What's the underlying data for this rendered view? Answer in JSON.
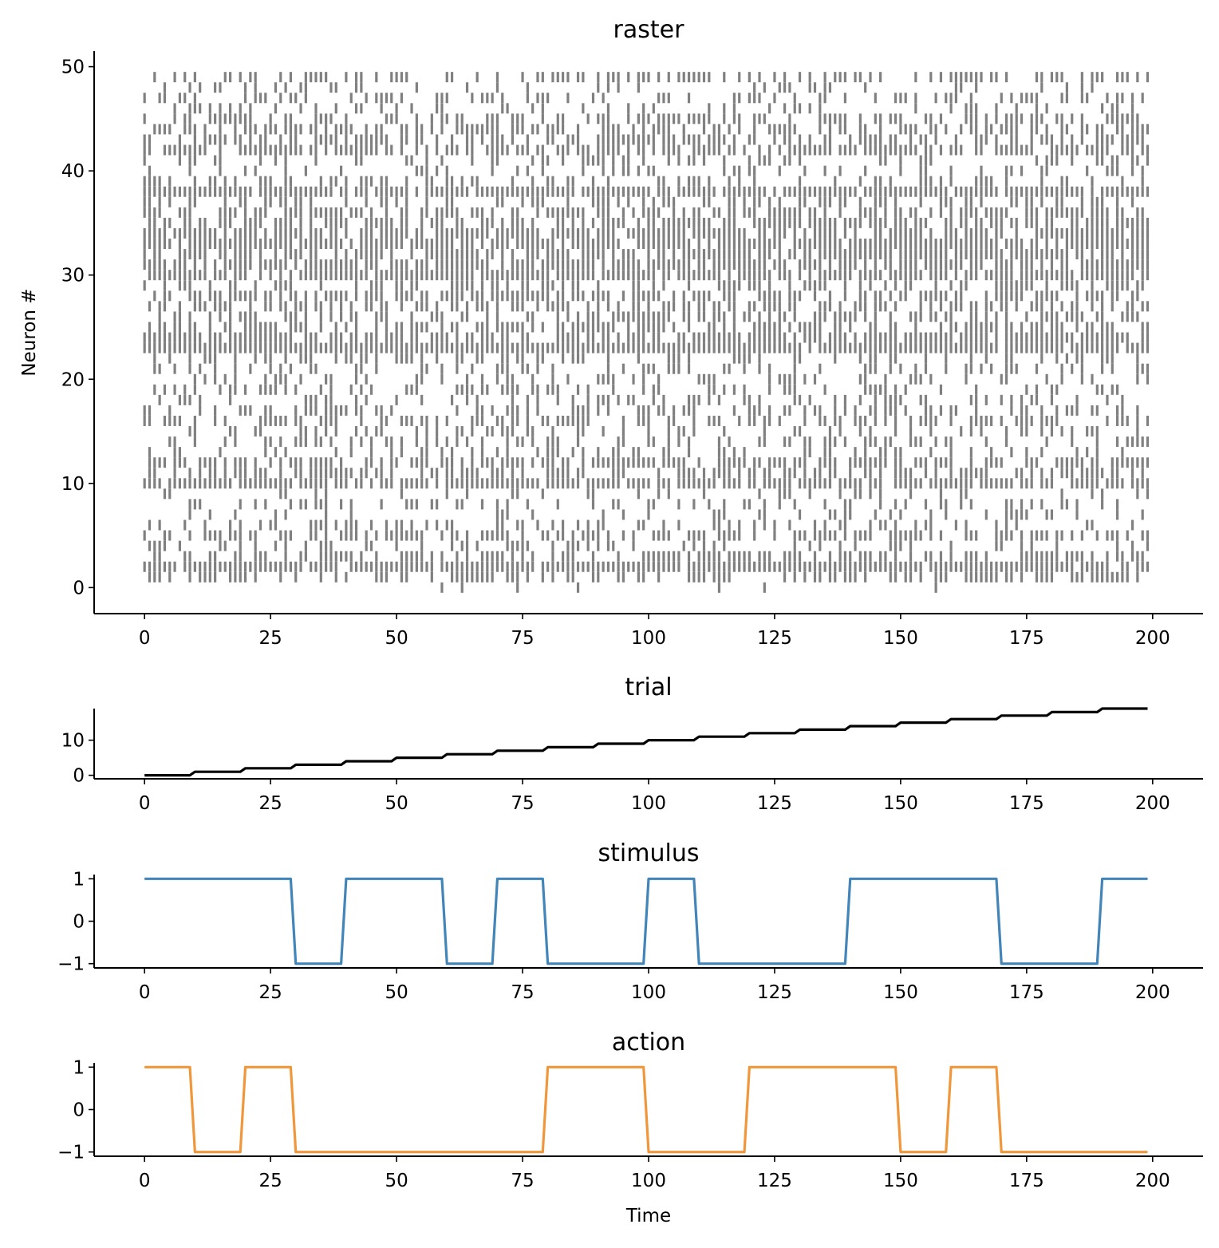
{
  "chart_data": [
    {
      "type": "raster",
      "title": "raster",
      "xlabel": "",
      "ylabel": "Neuron #",
      "xlim": [
        -10,
        210
      ],
      "ylim": [
        -2.5,
        51.5
      ],
      "xticks": [
        0,
        25,
        50,
        75,
        100,
        125,
        150,
        175,
        200
      ],
      "yticks": [
        0,
        10,
        20,
        30,
        40,
        50
      ],
      "n_neurons": 50,
      "time_steps": 200,
      "spike_color": "#808080",
      "spike_rate_by_neuron": [
        0.03,
        0.5,
        0.95,
        0.55,
        0.3,
        0.55,
        0.35,
        0.2,
        0.3,
        0.2,
        0.85,
        0.6,
        0.75,
        0.35,
        0.4,
        0.25,
        0.5,
        0.45,
        0.35,
        0.3,
        0.25,
        0.3,
        0.4,
        0.97,
        0.75,
        0.6,
        0.55,
        0.5,
        0.65,
        0.45,
        0.88,
        0.8,
        0.7,
        0.85,
        0.75,
        0.6,
        0.65,
        0.5,
        0.92,
        0.35,
        0.3,
        0.3,
        0.7,
        0.55,
        0.6,
        0.5,
        0.3,
        0.35,
        0.2,
        0.45
      ]
    },
    {
      "type": "line",
      "title": "trial",
      "xlabel": "",
      "ylabel": "",
      "xlim": [
        -10,
        210
      ],
      "ylim": [
        -1,
        19
      ],
      "xticks": [
        0,
        25,
        50,
        75,
        100,
        125,
        150,
        175,
        200
      ],
      "yticks": [
        0,
        10
      ],
      "color": "#000000",
      "x": [
        0,
        9,
        10,
        19,
        20,
        29,
        30,
        39,
        40,
        49,
        50,
        59,
        60,
        69,
        70,
        79,
        80,
        89,
        90,
        99,
        100,
        109,
        110,
        119,
        120,
        129,
        130,
        139,
        140,
        149,
        150,
        159,
        160,
        169,
        170,
        179,
        180,
        189,
        190,
        199
      ],
      "y": [
        0,
        0,
        1,
        1,
        2,
        2,
        3,
        3,
        4,
        4,
        5,
        5,
        6,
        6,
        7,
        7,
        8,
        8,
        9,
        9,
        10,
        10,
        11,
        11,
        12,
        12,
        13,
        13,
        14,
        14,
        15,
        15,
        16,
        16,
        17,
        17,
        18,
        18,
        19,
        19
      ]
    },
    {
      "type": "line",
      "title": "stimulus",
      "xlabel": "",
      "ylabel": "",
      "xlim": [
        -10,
        210
      ],
      "ylim": [
        -1.1,
        1.1
      ],
      "xticks": [
        0,
        25,
        50,
        75,
        100,
        125,
        150,
        175,
        200
      ],
      "yticks": [
        1,
        0,
        -1
      ],
      "ytick_labels": [
        "1",
        "0",
        "−1"
      ],
      "color": "#4285b8",
      "x": [
        0,
        29,
        30,
        39,
        40,
        59,
        60,
        69,
        70,
        79,
        80,
        99,
        100,
        109,
        110,
        139,
        140,
        169,
        170,
        189,
        190,
        199
      ],
      "y": [
        1,
        1,
        -1,
        -1,
        1,
        1,
        -1,
        -1,
        1,
        1,
        -1,
        -1,
        1,
        1,
        -1,
        -1,
        1,
        1,
        -1,
        -1,
        1,
        1
      ]
    },
    {
      "type": "line",
      "title": "action",
      "xlabel": "Time",
      "ylabel": "",
      "xlim": [
        -10,
        210
      ],
      "ylim": [
        -1.1,
        1.1
      ],
      "xticks": [
        0,
        25,
        50,
        75,
        100,
        125,
        150,
        175,
        200
      ],
      "yticks": [
        1,
        0,
        -1
      ],
      "ytick_labels": [
        "1",
        "0",
        "−1"
      ],
      "color": "#f0973c",
      "x": [
        0,
        9,
        10,
        19,
        20,
        29,
        30,
        79,
        80,
        99,
        100,
        119,
        120,
        149,
        150,
        159,
        160,
        169,
        170,
        199
      ],
      "y": [
        1,
        1,
        -1,
        -1,
        1,
        1,
        -1,
        -1,
        1,
        1,
        -1,
        -1,
        1,
        1,
        -1,
        -1,
        1,
        1,
        -1,
        -1
      ]
    }
  ]
}
